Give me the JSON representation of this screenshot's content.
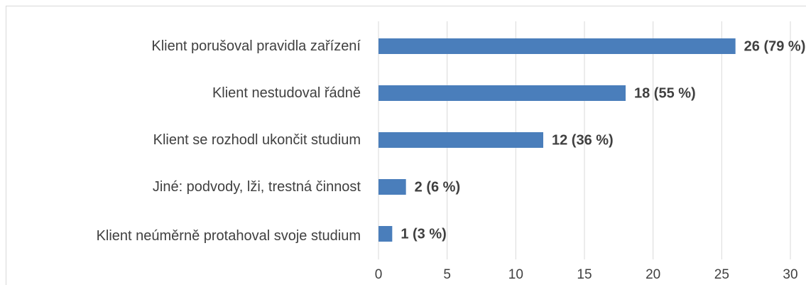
{
  "chart_data": {
    "type": "barh",
    "categories": [
      "Klient porušoval pravidla zařízení",
      "Klient nestudoval řádně",
      "Klient se rozhodl ukončit studium",
      "Jiné: podvody, lži, trestná činnost",
      "Klient neúměrně protahoval svoje studium"
    ],
    "values": [
      26,
      18,
      12,
      2,
      1
    ],
    "value_labels": [
      "26 (79 %)",
      "18 (55 %)",
      "12 (36 %)",
      "2 (6 %)",
      "1 (3 %)"
    ],
    "color": "#4a7ebb",
    "xlim": [
      0,
      30
    ],
    "xticks": [
      0,
      5,
      10,
      15,
      20,
      25,
      30
    ],
    "grid": true
  }
}
